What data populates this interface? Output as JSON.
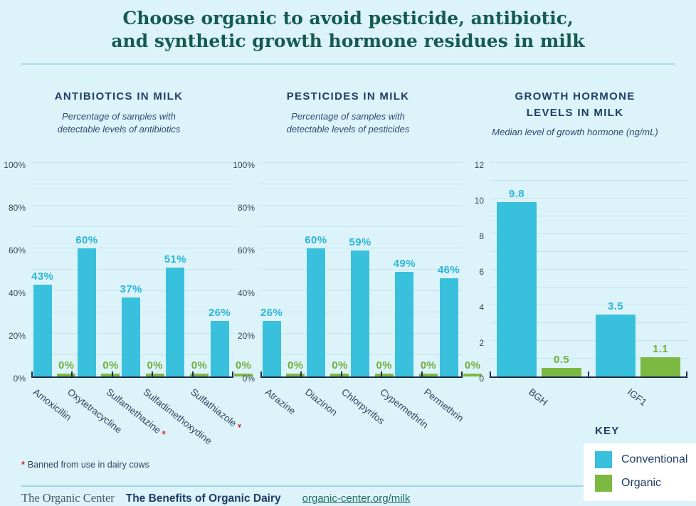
{
  "title": {
    "line1": "Choose organic to avoid pesticide, antibiotic,",
    "line2": "and synthetic growth hormone residues in milk"
  },
  "colors": {
    "background": "#dcf3fa",
    "conventional": "#39c0dc",
    "organic": "#7cb942",
    "title_teal": "#155b50",
    "heading_navy": "#1f3d66",
    "axis": "#1b2b4b",
    "banned_red": "#d22b27"
  },
  "chart_data": [
    {
      "type": "bar",
      "title": "ANTIBIOTICS IN MILK",
      "subtitle": "Percentage of samples with detectable levels of antibiotics",
      "categories": [
        "Amoxicillin",
        "Oxytetracycline",
        "Sulfamethazine",
        "Sulfadimethoxydine",
        "Sulfathiazole"
      ],
      "banned": [
        false,
        false,
        true,
        false,
        true
      ],
      "series": [
        {
          "name": "Conventional",
          "color": "#39c0dc",
          "label_color": "#2ab6d9",
          "values": [
            43,
            60,
            37,
            51,
            26
          ],
          "labels": [
            "43%",
            "60%",
            "37%",
            "51%",
            "26%"
          ]
        },
        {
          "name": "Organic",
          "color": "#7cb942",
          "label_color": "#70af3c",
          "values": [
            0,
            0,
            0,
            0,
            0
          ],
          "labels": [
            "0%",
            "0%",
            "0%",
            "0%",
            "0%"
          ]
        }
      ],
      "ylim": [
        0,
        100
      ],
      "ytick_step": 20,
      "grid_step": 10,
      "ytick_labels": [
        "0%",
        "20%",
        "40%",
        "60%",
        "80%",
        "100%"
      ],
      "legend_position": "bottom-right-shared",
      "grid": true
    },
    {
      "type": "bar",
      "title": "PESTICIDES IN MILK",
      "subtitle": "Percentage of samples with detectable levels of pesticides",
      "categories": [
        "Atrazine",
        "Diazinon",
        "Chlorpyrifos",
        "Cypermethrin",
        "Permethrin"
      ],
      "banned": [
        false,
        false,
        false,
        false,
        false
      ],
      "series": [
        {
          "name": "Conventional",
          "color": "#39c0dc",
          "label_color": "#2ab6d9",
          "values": [
            26,
            60,
            59,
            49,
            46
          ],
          "labels": [
            "26%",
            "60%",
            "59%",
            "49%",
            "46%"
          ]
        },
        {
          "name": "Organic",
          "color": "#7cb942",
          "label_color": "#70af3c",
          "values": [
            0,
            0,
            0,
            0,
            0
          ],
          "labels": [
            "0%",
            "0%",
            "0%",
            "0%",
            "0%"
          ]
        }
      ],
      "ylim": [
        0,
        100
      ],
      "ytick_step": 20,
      "grid_step": 10,
      "ytick_labels": [
        "0%",
        "20%",
        "40%",
        "60%",
        "80%",
        "100%"
      ],
      "legend_position": "bottom-right-shared",
      "grid": true
    },
    {
      "type": "bar",
      "title": "GROWTH HORMONE LEVELS IN MILK",
      "subtitle": "Median level of growth hormone (ng/mL)",
      "categories": [
        "BGH",
        "IGF1"
      ],
      "banned": [
        false,
        false
      ],
      "series": [
        {
          "name": "Conventional",
          "color": "#39c0dc",
          "label_color": "#2ab6d9",
          "values": [
            9.8,
            3.5
          ],
          "labels": [
            "9.8",
            "3.5"
          ]
        },
        {
          "name": "Organic",
          "color": "#7cb942",
          "label_color": "#70af3c",
          "values": [
            0.5,
            1.1
          ],
          "labels": [
            "0.5",
            "1.1"
          ]
        }
      ],
      "ylim": [
        0,
        12
      ],
      "ytick_step": 2,
      "grid_step": 1,
      "ytick_labels": [
        "0",
        "2",
        "4",
        "6",
        "8",
        "10",
        "12"
      ],
      "legend_position": "bottom-right-shared",
      "grid": true
    }
  ],
  "footnote": {
    "marker": "*",
    "text": "Banned from use in dairy cows"
  },
  "key": {
    "heading": "KEY",
    "items": [
      {
        "label": "Conventional",
        "color": "#39c0dc"
      },
      {
        "label": "Organic",
        "color": "#7cb942"
      }
    ]
  },
  "footer": {
    "org": "The Organic Center",
    "publication": "The Benefits of Organic Dairy",
    "link": "organic-center.org/milk"
  }
}
